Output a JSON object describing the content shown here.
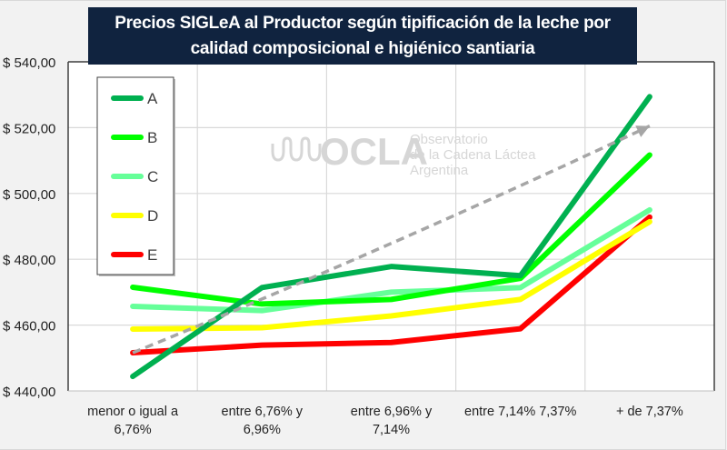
{
  "chart_data": {
    "type": "line",
    "title": "Precios SIGLeA al Productor según tipificación de la leche por calidad composicional e higiénico santiaria",
    "title_lines": [
      "Precios SIGLeA al Productor  según tipificación  de la leche por",
      "calidad  composicional  e higiénico santiaria"
    ],
    "xlabel": "",
    "ylabel": "",
    "ylim": [
      440,
      540
    ],
    "yticks": [
      440,
      460,
      480,
      500,
      520,
      540
    ],
    "ytick_labels": [
      "$ 440,00",
      "$ 460,00",
      "$ 480,00",
      "$ 500,00",
      "$ 520,00",
      "$ 540,00"
    ],
    "categories": [
      [
        "menor o igual a",
        "6,76%"
      ],
      [
        "entre 6,76% y",
        "6,96%"
      ],
      [
        "entre 6,96% y",
        "7,14%"
      ],
      [
        "entre 7,14% 7,37%"
      ],
      [
        "+ de 7,37%"
      ]
    ],
    "series": [
      {
        "name": "A",
        "color": "#00b050",
        "values": [
          444.4,
          471.4,
          477.8,
          475.0,
          529.4
        ]
      },
      {
        "name": "B",
        "color": "#00ff00",
        "values": [
          471.5,
          466.4,
          467.8,
          474.2,
          511.7
        ]
      },
      {
        "name": "C",
        "color": "#66ff99",
        "values": [
          465.7,
          464.4,
          470.0,
          471.4,
          495.0
        ]
      },
      {
        "name": "D",
        "color": "#ffff00",
        "values": [
          458.8,
          459.2,
          462.8,
          467.8,
          491.4
        ]
      },
      {
        "name": "E",
        "color": "#ff0000",
        "values": [
          451.6,
          453.9,
          454.7,
          458.9,
          492.8
        ]
      }
    ],
    "trendline": {
      "type": "exponential",
      "color": "#a6a6a6",
      "style": "dashed",
      "arrow": true,
      "start_value": 451.6,
      "end_value": 520.5
    },
    "grid": true,
    "legend": "top-left",
    "watermark": {
      "logo": "OCLA",
      "lines": [
        "Observatorio",
        "de la Cadena Láctea",
        "Argentina"
      ]
    }
  }
}
